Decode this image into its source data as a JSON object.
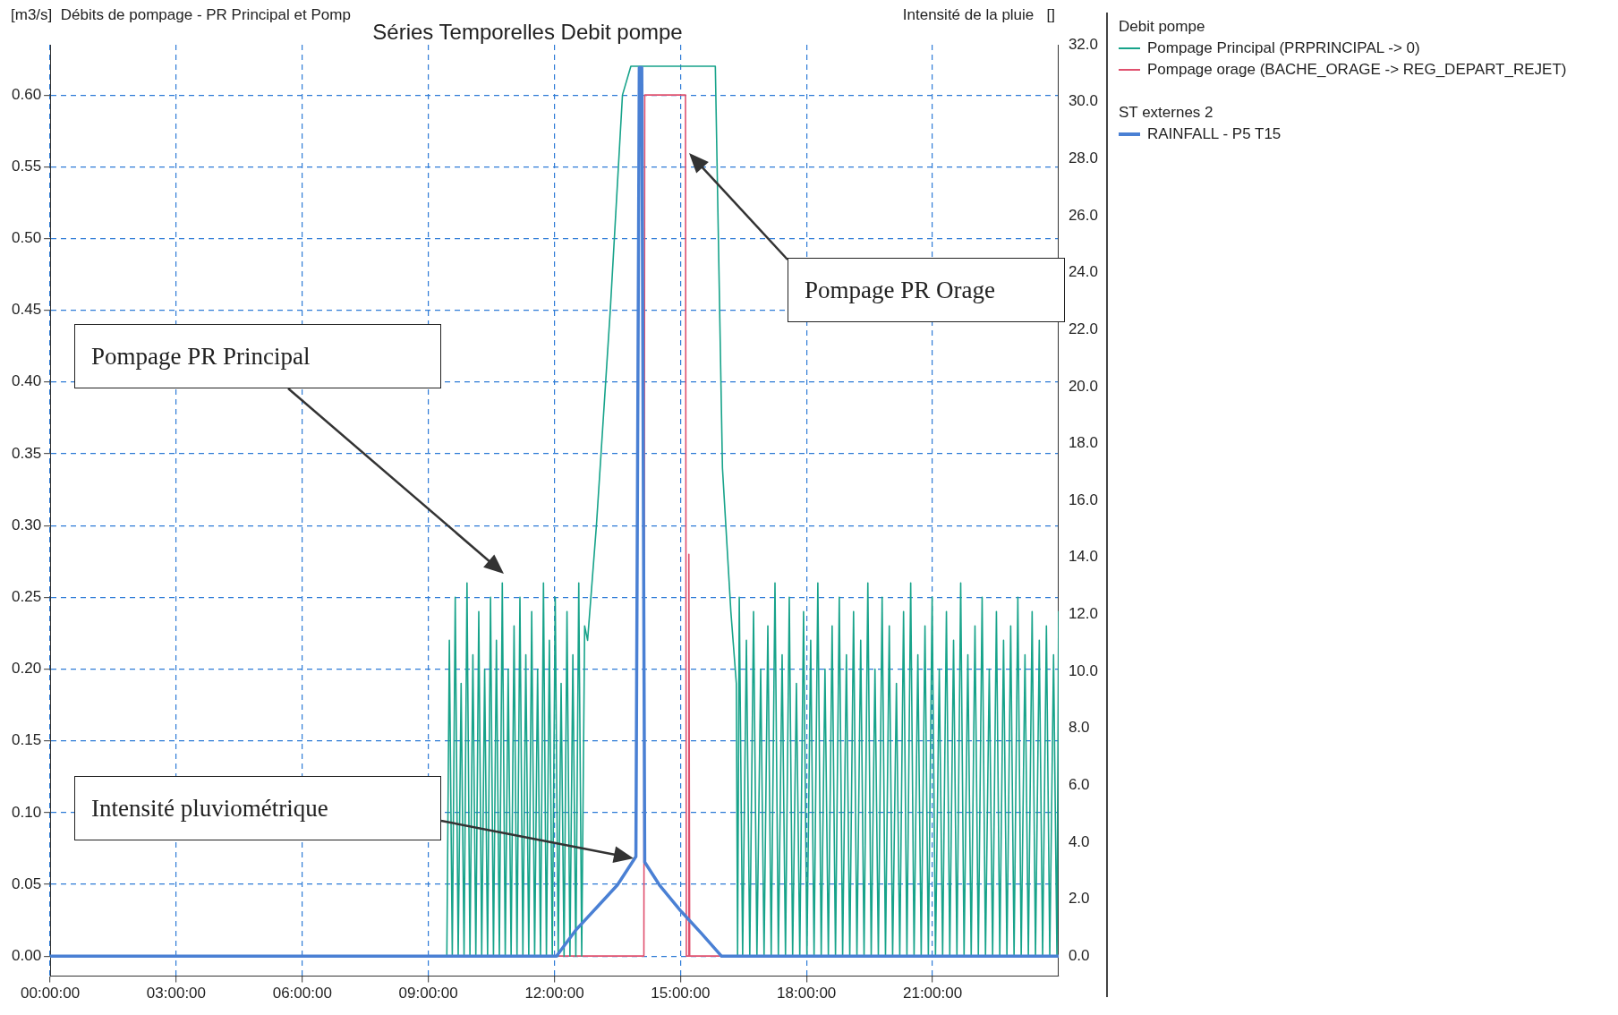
{
  "chart_data": {
    "type": "line",
    "title": "Séries Temporelles Debit pompe",
    "ylabel": "[m3/s]  Débits de pompage - PR Principal et Pomp",
    "y2label": "Intensité de la pluie   []",
    "legend_title": "Debit pompe",
    "legend": "right",
    "marker": "none",
    "grid": true,
    "xlim": [
      0,
      24
    ],
    "xticks": [
      {
        "value": 0,
        "label": "00:00:00"
      },
      {
        "value": 3,
        "label": "03:00:00"
      },
      {
        "value": 6,
        "label": "06:00:00"
      },
      {
        "value": 9,
        "label": "09:00:00"
      },
      {
        "value": 12,
        "label": "12:00:00"
      },
      {
        "value": 15,
        "label": "15:00:00"
      },
      {
        "value": 18,
        "label": "18:00:00"
      },
      {
        "value": 21,
        "label": "21:00:00"
      }
    ],
    "ylim": [
      -0.014,
      0.635
    ],
    "yticks": [
      {
        "value": 0,
        "label": "0.00"
      },
      {
        "value": 0.05,
        "label": "0.05"
      },
      {
        "value": 0.1,
        "label": "0.10"
      },
      {
        "value": 0.15,
        "label": "0.15"
      },
      {
        "value": 0.2,
        "label": "0.20"
      },
      {
        "value": 0.25,
        "label": "0.25"
      },
      {
        "value": 0.3,
        "label": "0.30"
      },
      {
        "value": 0.35,
        "label": "0.35"
      },
      {
        "value": 0.4,
        "label": "0.40"
      },
      {
        "value": 0.45,
        "label": "0.45"
      },
      {
        "value": 0.5,
        "label": "0.50"
      },
      {
        "value": 0.55,
        "label": "0.55"
      },
      {
        "value": 0.6,
        "label": "0.60"
      }
    ],
    "y2lim": [
      -0.7,
      32
    ],
    "y2ticks": [
      {
        "value": 0,
        "label": "0.0"
      },
      {
        "value": 2,
        "label": "2.0"
      },
      {
        "value": 4,
        "label": "4.0"
      },
      {
        "value": 6,
        "label": "6.0"
      },
      {
        "value": 8,
        "label": "8.0"
      },
      {
        "value": 10,
        "label": "10.0"
      },
      {
        "value": 12,
        "label": "12.0"
      },
      {
        "value": 14,
        "label": "14.0"
      },
      {
        "value": 16,
        "label": "16.0"
      },
      {
        "value": 18,
        "label": "18.0"
      },
      {
        "value": 20,
        "label": "20.0"
      },
      {
        "value": 22,
        "label": "22.0"
      },
      {
        "value": 24,
        "label": "24.0"
      },
      {
        "value": 26,
        "label": "26.0"
      },
      {
        "value": 28,
        "label": "28.0"
      },
      {
        "value": 30,
        "label": "30.0"
      },
      {
        "value": 32,
        "label": "32.0"
      }
    ],
    "series": [
      {
        "name": "Pompage Principal (PRPRINCIPAL -> 0)",
        "color": "#17a38a",
        "x": [
          0,
          9.44,
          9.5,
          9.57,
          9.64,
          9.71,
          9.78,
          9.85,
          9.92,
          9.99,
          10.06,
          10.13,
          10.2,
          10.27,
          10.34,
          10.41,
          10.48,
          10.55,
          10.62,
          10.69,
          10.76,
          10.83,
          10.9,
          10.97,
          11.04,
          11.11,
          11.18,
          11.25,
          11.32,
          11.39,
          11.46,
          11.53,
          11.6,
          11.67,
          11.74,
          11.81,
          11.88,
          11.95,
          12.02,
          12.09,
          12.16,
          12.23,
          12.3,
          12.37,
          12.44,
          12.51,
          12.58,
          12.65,
          12.72,
          12.79,
          13.0,
          13.33,
          13.62,
          13.82,
          15.83,
          16.0,
          16.2,
          16.33,
          16.36,
          16.4,
          16.48,
          16.57,
          16.65,
          16.74,
          16.82,
          16.91,
          16.99,
          17.08,
          17.16,
          17.25,
          17.33,
          17.42,
          17.5,
          17.59,
          17.67,
          17.76,
          17.84,
          17.93,
          18.01,
          18.1,
          18.18,
          18.27,
          18.35,
          18.44,
          18.52,
          18.61,
          18.69,
          18.78,
          18.86,
          18.95,
          19.03,
          19.12,
          19.2,
          19.29,
          19.37,
          19.46,
          19.54,
          19.63,
          19.71,
          19.8,
          19.88,
          19.97,
          20.05,
          20.14,
          20.22,
          20.31,
          20.39,
          20.48,
          20.56,
          20.65,
          20.73,
          20.82,
          20.9,
          20.99,
          21.07,
          21.16,
          21.24,
          21.33,
          21.41,
          21.5,
          21.58,
          21.67,
          21.75,
          21.84,
          21.92,
          22.01,
          22.09,
          22.18,
          22.26,
          22.35,
          22.43,
          22.52,
          22.6,
          22.69,
          22.77,
          22.86,
          22.94,
          23.03,
          23.11,
          23.2,
          23.28,
          23.37,
          23.45,
          23.54,
          23.62,
          23.71,
          23.79,
          23.88,
          23.96,
          24.0
        ],
        "values": [
          0,
          0,
          0.22,
          0,
          0.25,
          0,
          0.19,
          0,
          0.26,
          0,
          0.21,
          0,
          0.24,
          0,
          0.2,
          0,
          0.25,
          0,
          0.22,
          0,
          0.26,
          0,
          0.2,
          0,
          0.23,
          0,
          0.25,
          0,
          0.21,
          0,
          0.24,
          0,
          0.2,
          0,
          0.26,
          0,
          0.22,
          0,
          0.25,
          0,
          0.19,
          0,
          0.24,
          0,
          0.21,
          0,
          0.26,
          0,
          0.23,
          0.22,
          0.3,
          0.45,
          0.6,
          0.62,
          0.62,
          0.34,
          0.24,
          0.19,
          0,
          0.25,
          0,
          0.22,
          0,
          0.24,
          0,
          0.2,
          0,
          0.23,
          0,
          0.26,
          0,
          0.21,
          0,
          0.25,
          0,
          0.19,
          0,
          0.24,
          0,
          0.22,
          0,
          0.26,
          0,
          0.2,
          0,
          0.23,
          0,
          0.25,
          0,
          0.21,
          0,
          0.24,
          0,
          0.22,
          0,
          0.26,
          0,
          0.2,
          0,
          0.25,
          0,
          0.23,
          0,
          0.19,
          0,
          0.24,
          0,
          0.26,
          0,
          0.21,
          0,
          0.23,
          0,
          0.25,
          0,
          0.2,
          0,
          0.24,
          0,
          0.22,
          0,
          0.26,
          0,
          0.21,
          0,
          0.23,
          0,
          0.25,
          0,
          0.2,
          0,
          0.24,
          0,
          0.22,
          0,
          0.23,
          0,
          0.25,
          0,
          0.21,
          0,
          0.24,
          0,
          0.22,
          0,
          0.23,
          0,
          0.21,
          0,
          0.24
        ]
      },
      {
        "name": "Pompage orage (BACHE_ORAGE -> REG_DEPART_REJET)",
        "color": "#e0506e",
        "x": [
          12.05,
          14.13,
          14.15,
          15.12,
          15.14,
          15.19,
          15.2,
          15.22,
          16.0
        ],
        "values": [
          0,
          0,
          0.6,
          0.6,
          0,
          0,
          0.28,
          0,
          0
        ]
      },
      {
        "name": "RAINFALL - P5 T15",
        "color": "#4a80d4",
        "axis": "y2",
        "x": [
          0,
          12.05,
          12.5,
          13.0,
          13.5,
          13.94,
          14.02,
          14.08,
          14.15,
          14.5,
          15.0,
          15.5,
          15.98,
          24
        ],
        "values": [
          0,
          0,
          0.9,
          1.7,
          2.5,
          3.5,
          31.2,
          31.2,
          3.3,
          2.5,
          1.6,
          0.8,
          0,
          0
        ]
      }
    ],
    "annotations": [
      "ST externes 2",
      "Pompage PR Principal",
      "Pompage PR Orage",
      "Intensité pluviométrique"
    ]
  }
}
